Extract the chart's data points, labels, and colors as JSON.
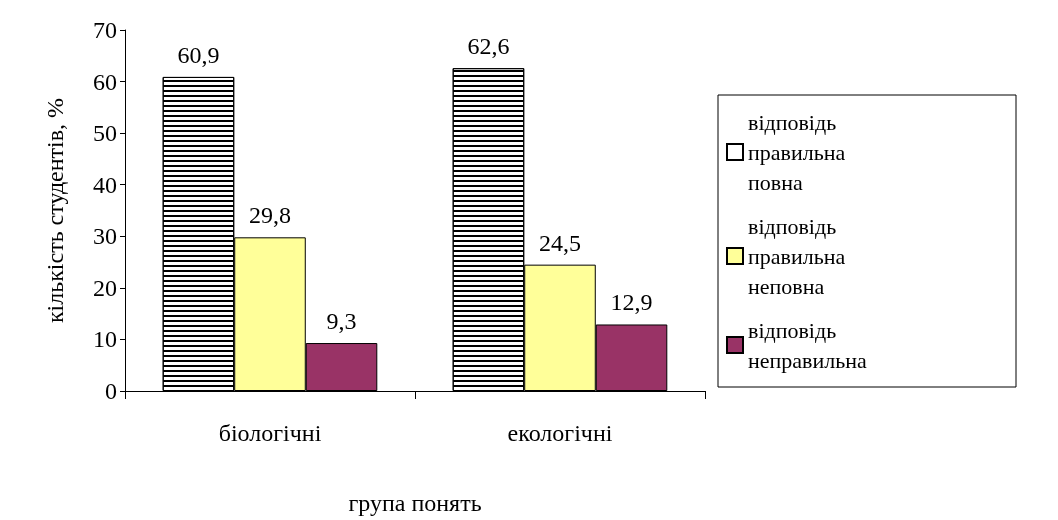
{
  "chart_data": {
    "type": "bar",
    "xlabel": "група понять",
    "ylabel": "кількість студентів, %",
    "categories": [
      "біологічні",
      "екологічні"
    ],
    "series": [
      {
        "name": "відповідь правильна повна",
        "color": "#ffffff",
        "values": [
          60.9,
          62.6
        ],
        "value_labels": [
          "60,9",
          "62,6"
        ]
      },
      {
        "name": "відповідь правильна неповна",
        "color": "#ffff99",
        "values": [
          29.8,
          24.5
        ],
        "value_labels": [
          "29,8",
          "24,5"
        ]
      },
      {
        "name": "відповідь неправильна",
        "color": "#993366",
        "values": [
          9.3,
          12.9
        ],
        "value_labels": [
          "9,3",
          "12,9"
        ]
      }
    ],
    "ylim": [
      0,
      70
    ],
    "yticks": [
      0,
      10,
      20,
      30,
      40,
      50,
      60,
      70
    ],
    "grid": false,
    "legend": "right"
  }
}
